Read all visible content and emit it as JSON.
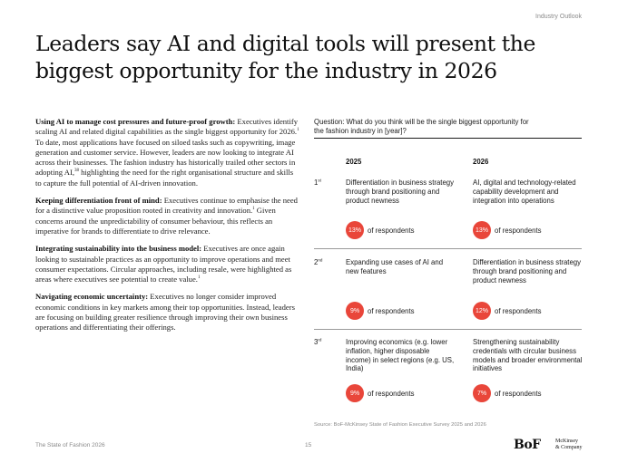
{
  "header": {
    "section": "Industry Outlook"
  },
  "title": "Leaders say AI and digital tools will present the biggest opportunity for the industry in 2026",
  "left_column": {
    "paragraphs": [
      {
        "heading": "Using AI to manage cost pressures and future-proof growth:",
        "body_1": " Executives identify scaling AI and related digital capabilities as the single biggest opportunity for 2026.",
        "sup_1": "1",
        "body_2": " To date, most applications have focused on siloed tasks such as copywriting, image generation and customer service. However, leaders are now looking to integrate AI across their businesses. The fashion industry has historically trailed other sectors in adopting AI,",
        "sup_2": "38",
        "body_3": " highlighting the need for the right organisational structure and skills to capture the full potential of AI-driven innovation."
      },
      {
        "heading": "Keeping differentiation front of mind:",
        "body_1": " Executives continue to emphasise the need for a distinctive value proposition rooted in creativity and innovation.",
        "sup_1": "1",
        "body_2": " Given concerns around the unpredictability of consumer behaviour, this reflects an imperative for brands to differentiate to drive relevance."
      },
      {
        "heading": "Integrating sustainability into the business model:",
        "body_1": " Executives are once again looking to sustainable practices as an opportunity to improve operations and meet consumer expectations. Circular approaches, including resale, were highlighted as areas where executives see potential to create value.",
        "sup_1": "1"
      },
      {
        "heading": "Navigating economic uncertainty:",
        "body_1": " Executives no longer consider improved economic conditions in key markets among their top opportunities. Instead, leaders are focusing on building greater resilience through improving their own business operations and differentiating their offerings."
      }
    ]
  },
  "survey": {
    "question": "Question: What do you think will be the single biggest opportunity for the fashion industry in [year]?",
    "col_2025": "2025",
    "col_2026": "2026",
    "rows": [
      {
        "rank": "1",
        "suffix": "st",
        "item_2025": "Differentiation in business strategy through brand positioning and product newness",
        "pct_2025": "13%",
        "item_2026": "AI, digital and technology-related capability development and integration into operations",
        "pct_2026": "13%"
      },
      {
        "rank": "2",
        "suffix": "nd",
        "item_2025": "Expanding use cases of AI and new features",
        "pct_2025": "9%",
        "item_2026": "Differentiation in business strategy through brand positioning and product newness",
        "pct_2026": "12%"
      },
      {
        "rank": "3",
        "suffix": "rd",
        "item_2025": "Improving economics (e.g. lower inflation, higher disposable income) in select regions (e.g. US, India)",
        "pct_2025": "9%",
        "item_2026": "Strengthening sustainability credentials with circular business models and broader environmental initiatives",
        "pct_2026": "7%"
      }
    ],
    "respondents_label": "of respondents",
    "source": "Source: BoF-McKinsey State of Fashion Executive Survey 2025 and 2026"
  },
  "footer": {
    "publication": "The State of Fashion 2026",
    "page": "15",
    "logo_bof": "BoF",
    "logo_mck_1": "McKinsey",
    "logo_mck_2": "& Company"
  },
  "colors": {
    "accent": "#e9463a"
  }
}
